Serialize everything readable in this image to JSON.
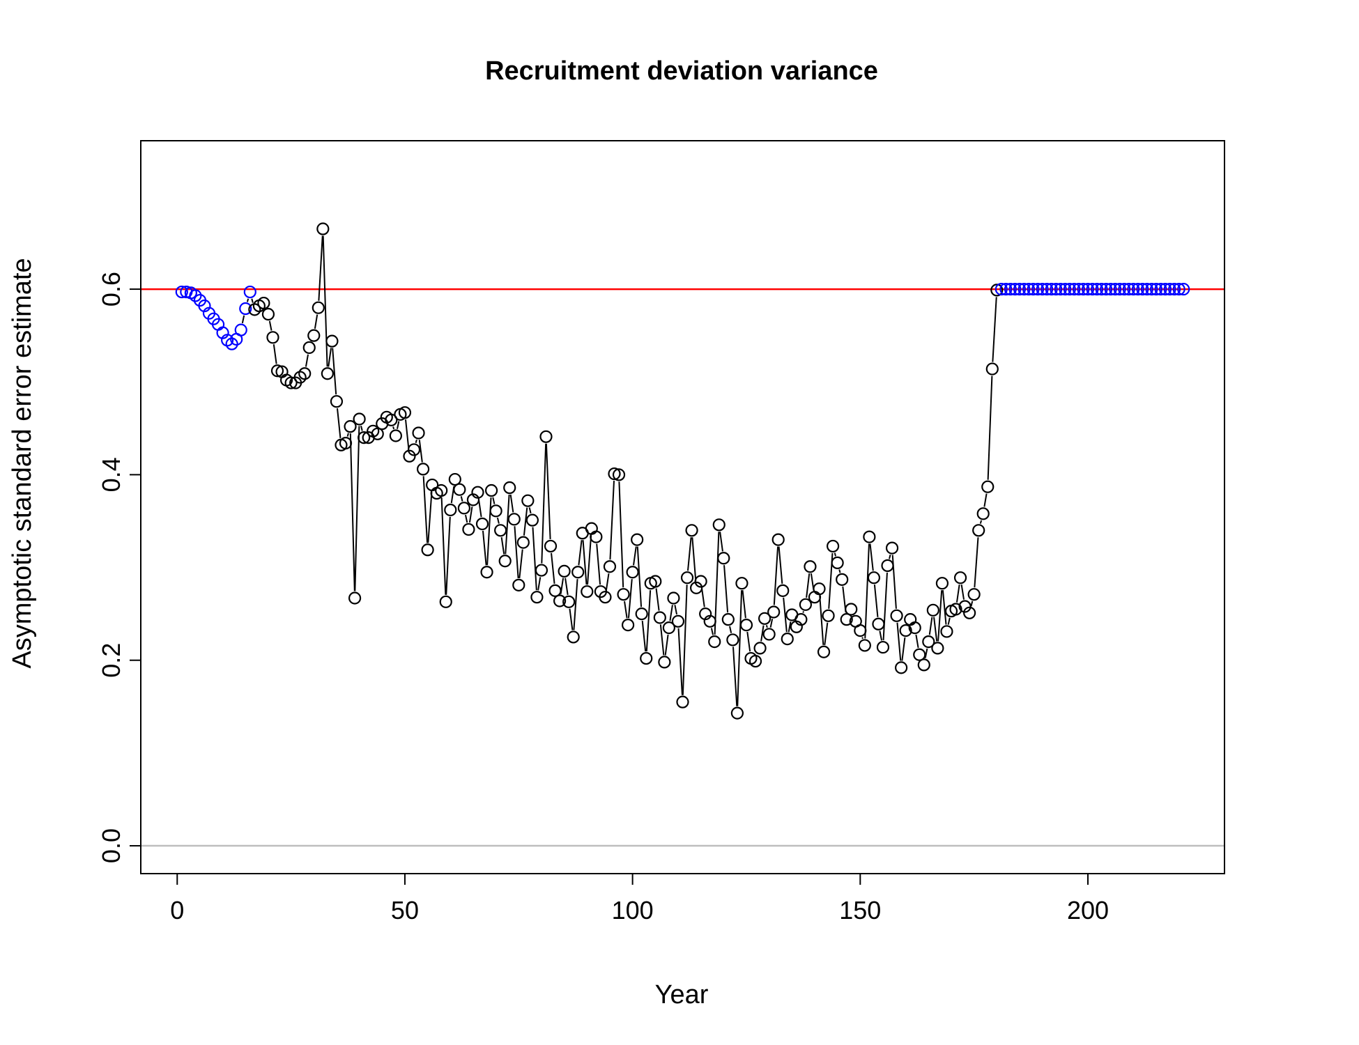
{
  "chart_data": {
    "type": "scatter",
    "title": "Recruitment deviation variance",
    "xlabel": "Year",
    "ylabel": "Asymptotic standard error estimate",
    "xlim": [
      -8,
      230
    ],
    "ylim": [
      -0.03,
      0.76
    ],
    "xticks": [
      0,
      50,
      100,
      150,
      200
    ],
    "yticks": [
      0.0,
      0.2,
      0.4,
      0.6
    ],
    "xtick_labels": [
      "0",
      "50",
      "100",
      "150",
      "200"
    ],
    "ytick_labels": [
      "0.0",
      "0.2",
      "0.4",
      "0.6"
    ],
    "grid": false,
    "reference_lines": [
      {
        "y": 0.6,
        "color": "#ff0000"
      },
      {
        "y": 0.0,
        "color": "#bebebe"
      }
    ],
    "colors": {
      "main": "#000000",
      "fixed": "#0000ff"
    },
    "series": [
      {
        "x": [
          1,
          2,
          3,
          4,
          5,
          6,
          7,
          8,
          9,
          10,
          11,
          12,
          13,
          14,
          15,
          16,
          17,
          18,
          19,
          20,
          21,
          22,
          23,
          24,
          25,
          26,
          27,
          28,
          29,
          30,
          31,
          32,
          33,
          34,
          35,
          36,
          37,
          38,
          39,
          40,
          41,
          42,
          43,
          44,
          45,
          46,
          47,
          48,
          49,
          50,
          51,
          52,
          53,
          54,
          55,
          56,
          57,
          58,
          59,
          60,
          61,
          62,
          63,
          64,
          65,
          66,
          67,
          68,
          69,
          70,
          71,
          72,
          73,
          74,
          75,
          76,
          77,
          78,
          79,
          80,
          81,
          82,
          83,
          84,
          85,
          86,
          87,
          88,
          89,
          90,
          91,
          92,
          93,
          94,
          95,
          96,
          97,
          98,
          99,
          100,
          101,
          102,
          103,
          104,
          105,
          106,
          107,
          108,
          109,
          110,
          111,
          112,
          113,
          114,
          115,
          116,
          117,
          118,
          119,
          120,
          121,
          122,
          123,
          124,
          125,
          126,
          127,
          128,
          129,
          130,
          131,
          132,
          133,
          134,
          135,
          136,
          137,
          138,
          139,
          140,
          141,
          142,
          143,
          144,
          145,
          146,
          147,
          148,
          149,
          150,
          151,
          152,
          153,
          154,
          155,
          156,
          157,
          158,
          159,
          160,
          161,
          162,
          163,
          164,
          165,
          166,
          167,
          168,
          169,
          170,
          171,
          172,
          173,
          174,
          175,
          176,
          177,
          178,
          179,
          180,
          181,
          182,
          183,
          184,
          185,
          186,
          187,
          188,
          189,
          190,
          191,
          192,
          193,
          194,
          195,
          196,
          197,
          198,
          199,
          200,
          201,
          202,
          203,
          204,
          205,
          206,
          207,
          208,
          209,
          210,
          211,
          212,
          213,
          214,
          215,
          216,
          217,
          218,
          219,
          220,
          221
        ],
        "y": [
          0.597,
          0.597,
          0.596,
          0.593,
          0.588,
          0.582,
          0.574,
          0.568,
          0.562,
          0.553,
          0.545,
          0.541,
          0.546,
          0.556,
          0.579,
          0.597,
          0.578,
          0.582,
          0.585,
          0.573,
          0.548,
          0.512,
          0.511,
          0.502,
          0.499,
          0.499,
          0.505,
          0.509,
          0.537,
          0.55,
          0.58,
          0.665,
          0.509,
          0.544,
          0.479,
          0.432,
          0.434,
          0.452,
          0.267,
          0.46,
          0.44,
          0.44,
          0.447,
          0.444,
          0.455,
          0.462,
          0.459,
          0.442,
          0.465,
          0.467,
          0.42,
          0.427,
          0.445,
          0.406,
          0.319,
          0.389,
          0.38,
          0.383,
          0.263,
          0.362,
          0.395,
          0.384,
          0.364,
          0.341,
          0.373,
          0.381,
          0.347,
          0.295,
          0.383,
          0.361,
          0.34,
          0.307,
          0.386,
          0.352,
          0.281,
          0.327,
          0.372,
          0.351,
          0.268,
          0.297,
          0.441,
          0.323,
          0.275,
          0.264,
          0.296,
          0.263,
          0.225,
          0.295,
          0.337,
          0.274,
          0.342,
          0.333,
          0.274,
          0.268,
          0.301,
          0.401,
          0.4,
          0.271,
          0.238,
          0.295,
          0.33,
          0.25,
          0.202,
          0.283,
          0.285,
          0.246,
          0.198,
          0.235,
          0.267,
          0.242,
          0.155,
          0.289,
          0.34,
          0.278,
          0.285,
          0.25,
          0.242,
          0.22,
          0.346,
          0.31,
          0.244,
          0.222,
          0.143,
          0.283,
          0.238,
          0.202,
          0.199,
          0.213,
          0.245,
          0.228,
          0.252,
          0.33,
          0.275,
          0.223,
          0.249,
          0.236,
          0.244,
          0.26,
          0.301,
          0.268,
          0.277,
          0.209,
          0.248,
          0.323,
          0.305,
          0.287,
          0.244,
          0.255,
          0.242,
          0.232,
          0.216,
          0.333,
          0.289,
          0.239,
          0.214,
          0.302,
          0.321,
          0.248,
          0.192,
          0.232,
          0.244,
          0.235,
          0.206,
          0.195,
          0.22,
          0.254,
          0.213,
          0.283,
          0.231,
          0.253,
          0.255,
          0.289,
          0.258,
          0.251,
          0.271,
          0.34,
          0.358,
          0.387,
          0.514,
          0.599,
          0.6,
          0.6,
          0.6,
          0.6,
          0.6,
          0.6,
          0.6,
          0.6,
          0.6,
          0.6,
          0.6,
          0.6,
          0.6,
          0.6,
          0.6,
          0.6,
          0.6,
          0.6,
          0.6,
          0.6,
          0.6,
          0.6,
          0.6,
          0.6,
          0.6,
          0.6,
          0.6,
          0.6,
          0.6,
          0.6,
          0.6,
          0.6,
          0.6,
          0.6,
          0.6,
          0.6,
          0.6,
          0.6,
          0.6,
          0.6,
          0.6
        ],
        "fixed_ranges": [
          [
            1,
            16
          ],
          [
            181,
            221
          ]
        ]
      }
    ]
  }
}
